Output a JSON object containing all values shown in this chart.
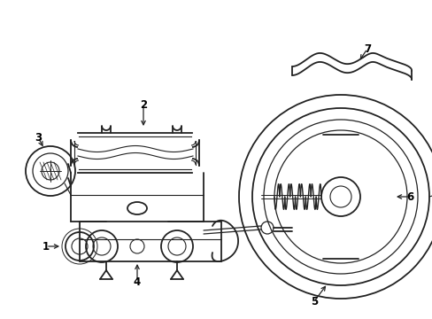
{
  "bg_color": "#ffffff",
  "line_color": "#222222",
  "label_color": "#000000",
  "figsize": [
    4.89,
    3.6
  ],
  "dpi": 100
}
